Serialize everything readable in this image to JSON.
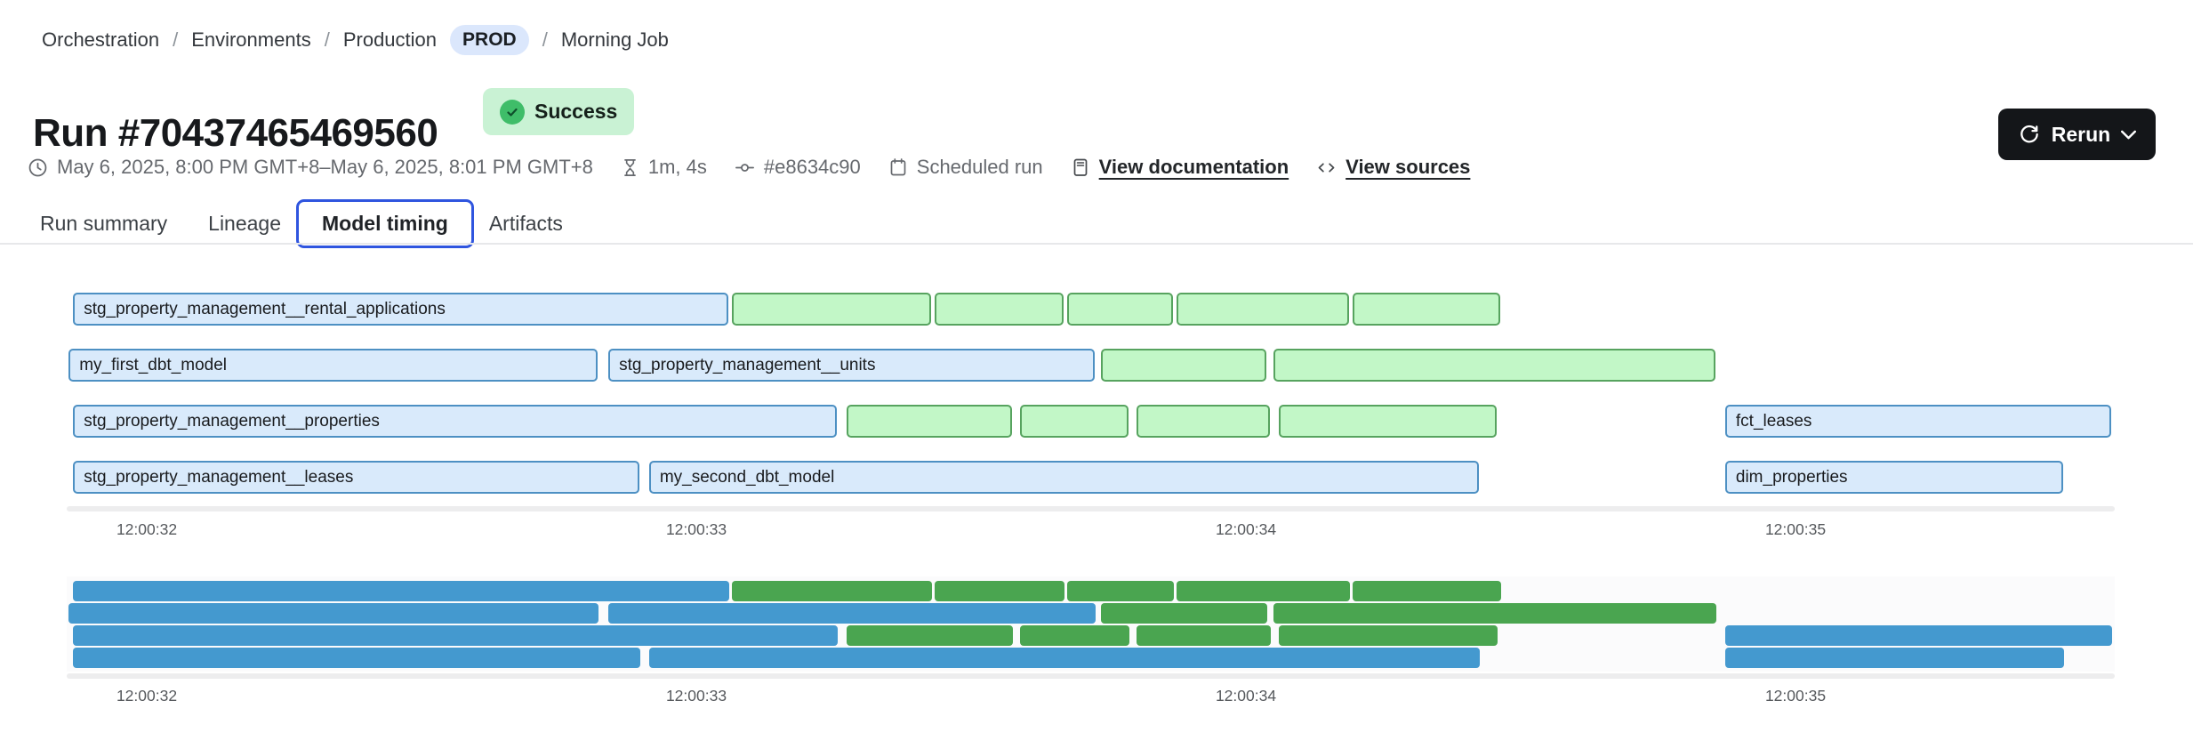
{
  "breadcrumb": {
    "separator": "/",
    "items": [
      {
        "label": "Orchestration"
      },
      {
        "label": "Environments"
      },
      {
        "label": "Production",
        "badge": "PROD"
      },
      {
        "label": "Morning Job"
      }
    ]
  },
  "header": {
    "title": "Run #70437465469560",
    "status": "Success"
  },
  "actions": {
    "rerun_label": "Rerun"
  },
  "meta": {
    "time_range": "May 6, 2025, 8:00 PM GMT+8–May 6, 2025, 8:01 PM GMT+8",
    "duration": "1m, 4s",
    "commit": "#e8634c90",
    "trigger": "Scheduled run",
    "docs_link": "View documentation",
    "sources_link": "View sources"
  },
  "tabs": {
    "items": [
      "Run summary",
      "Lineage",
      "Model timing",
      "Artifacts"
    ],
    "selected": "Model timing"
  },
  "colors": {
    "accent_blue": "#2f55df",
    "pill_bg": "#dbe7fc",
    "badge_bg": "#c9f2d4",
    "success_green": "#3fbd69",
    "rerun_bg": "#141619",
    "bar_blue_fill": "#d9eafb",
    "bar_blue_border": "#4d90c3",
    "bar_green_fill": "#c2f7c7",
    "bar_green_border": "#57a35f",
    "minimap_blue": "#4499cf",
    "minimap_green": "#4aa550"
  },
  "chart_data": {
    "type": "gantt",
    "title": "Model timing",
    "x_axis": {
      "tick_labels": [
        "12:00:32",
        "12:00:33",
        "12:00:34",
        "12:00:35"
      ],
      "tick_seconds": [
        32,
        33,
        34,
        35
      ]
    },
    "rows": [
      [
        {
          "label": "stg_property_management__rental_applications",
          "color": "blue",
          "start": 31.866,
          "end": 33.065
        },
        {
          "label": "",
          "color": "green",
          "start": 33.065,
          "end": 33.434
        },
        {
          "label": "",
          "color": "green",
          "start": 33.434,
          "end": 33.675
        },
        {
          "label": "",
          "color": "green",
          "start": 33.675,
          "end": 33.874
        },
        {
          "label": "",
          "color": "green",
          "start": 33.874,
          "end": 34.194
        },
        {
          "label": "",
          "color": "green",
          "start": 34.194,
          "end": 34.469
        }
      ],
      [
        {
          "label": "my_first_dbt_model",
          "color": "blue",
          "start": 31.858,
          "end": 32.827
        },
        {
          "label": "stg_property_management__units",
          "color": "blue",
          "start": 32.84,
          "end": 33.731
        },
        {
          "label": "",
          "color": "green",
          "start": 33.736,
          "end": 34.044
        },
        {
          "label": "",
          "color": "green",
          "start": 34.05,
          "end": 34.861
        }
      ],
      [
        {
          "label": "stg_property_management__properties",
          "color": "blue",
          "start": 31.866,
          "end": 33.262
        },
        {
          "label": "",
          "color": "green",
          "start": 33.273,
          "end": 33.581
        },
        {
          "label": "",
          "color": "green",
          "start": 33.589,
          "end": 33.793
        },
        {
          "label": "",
          "color": "green",
          "start": 33.801,
          "end": 34.05
        },
        {
          "label": "",
          "color": "green",
          "start": 34.06,
          "end": 34.463
        },
        {
          "label": "fct_leases",
          "color": "blue",
          "start": 34.872,
          "end": 35.581
        }
      ],
      [
        {
          "label": "stg_property_management__leases",
          "color": "blue",
          "start": 31.866,
          "end": 32.903
        },
        {
          "label": "my_second_dbt_model",
          "color": "blue",
          "start": 32.914,
          "end": 34.43
        },
        {
          "label": "dim_properties",
          "color": "blue",
          "start": 34.872,
          "end": 35.494
        }
      ]
    ]
  }
}
